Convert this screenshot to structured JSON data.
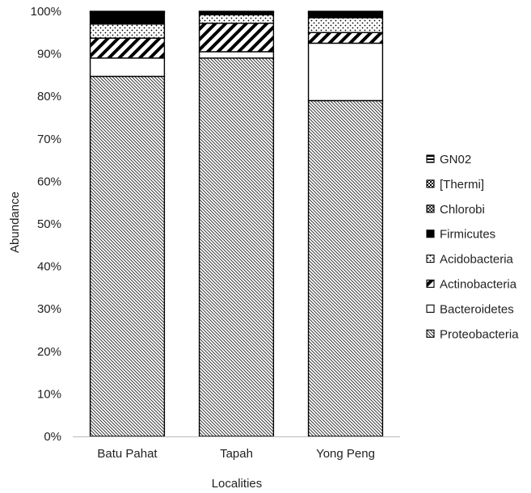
{
  "chart_data": {
    "type": "bar",
    "stacked": true,
    "title": "",
    "xlabel": "Localities",
    "ylabel": "Abundance",
    "ylim": [
      0,
      100
    ],
    "y_ticks": [
      "0%",
      "10%",
      "20%",
      "30%",
      "40%",
      "50%",
      "60%",
      "70%",
      "80%",
      "90%",
      "100%"
    ],
    "categories": [
      "Batu Pahat",
      "Tapah",
      "Yong Peng"
    ],
    "series": [
      {
        "name": "Proteobacteria",
        "pattern": "hatch-light",
        "values": [
          84.7,
          89.0,
          79.0
        ]
      },
      {
        "name": "Bacteroidetes",
        "pattern": "blank",
        "values": [
          4.3,
          1.5,
          13.5
        ]
      },
      {
        "name": "Actinobacteria",
        "pattern": "hatch-bold",
        "values": [
          4.7,
          6.7,
          2.5
        ]
      },
      {
        "name": "Acidobacteria",
        "pattern": "dots",
        "values": [
          3.3,
          2.0,
          3.5
        ]
      },
      {
        "name": "Firmicutes",
        "pattern": "solid",
        "values": [
          2.5,
          0.5,
          1.0
        ]
      },
      {
        "name": "Chlorobi",
        "pattern": "crosshatch",
        "values": [
          0.2,
          0.1,
          0.2
        ]
      },
      {
        "name": "[Thermi]",
        "pattern": "checker",
        "values": [
          0.2,
          0.1,
          0.2
        ]
      },
      {
        "name": "GN02",
        "pattern": "hstripes",
        "values": [
          0.1,
          0.1,
          0.1
        ]
      }
    ],
    "legend_position": "right",
    "legend_order": [
      "GN02",
      "[Thermi]",
      "Chlorobi",
      "Firmicutes",
      "Acidobacteria",
      "Actinobacteria",
      "Bacteroidetes",
      "Proteobacteria"
    ],
    "grid": false,
    "colors": {
      "stroke": "#000000",
      "fill": "#ffffff",
      "ink": "#111111"
    }
  }
}
